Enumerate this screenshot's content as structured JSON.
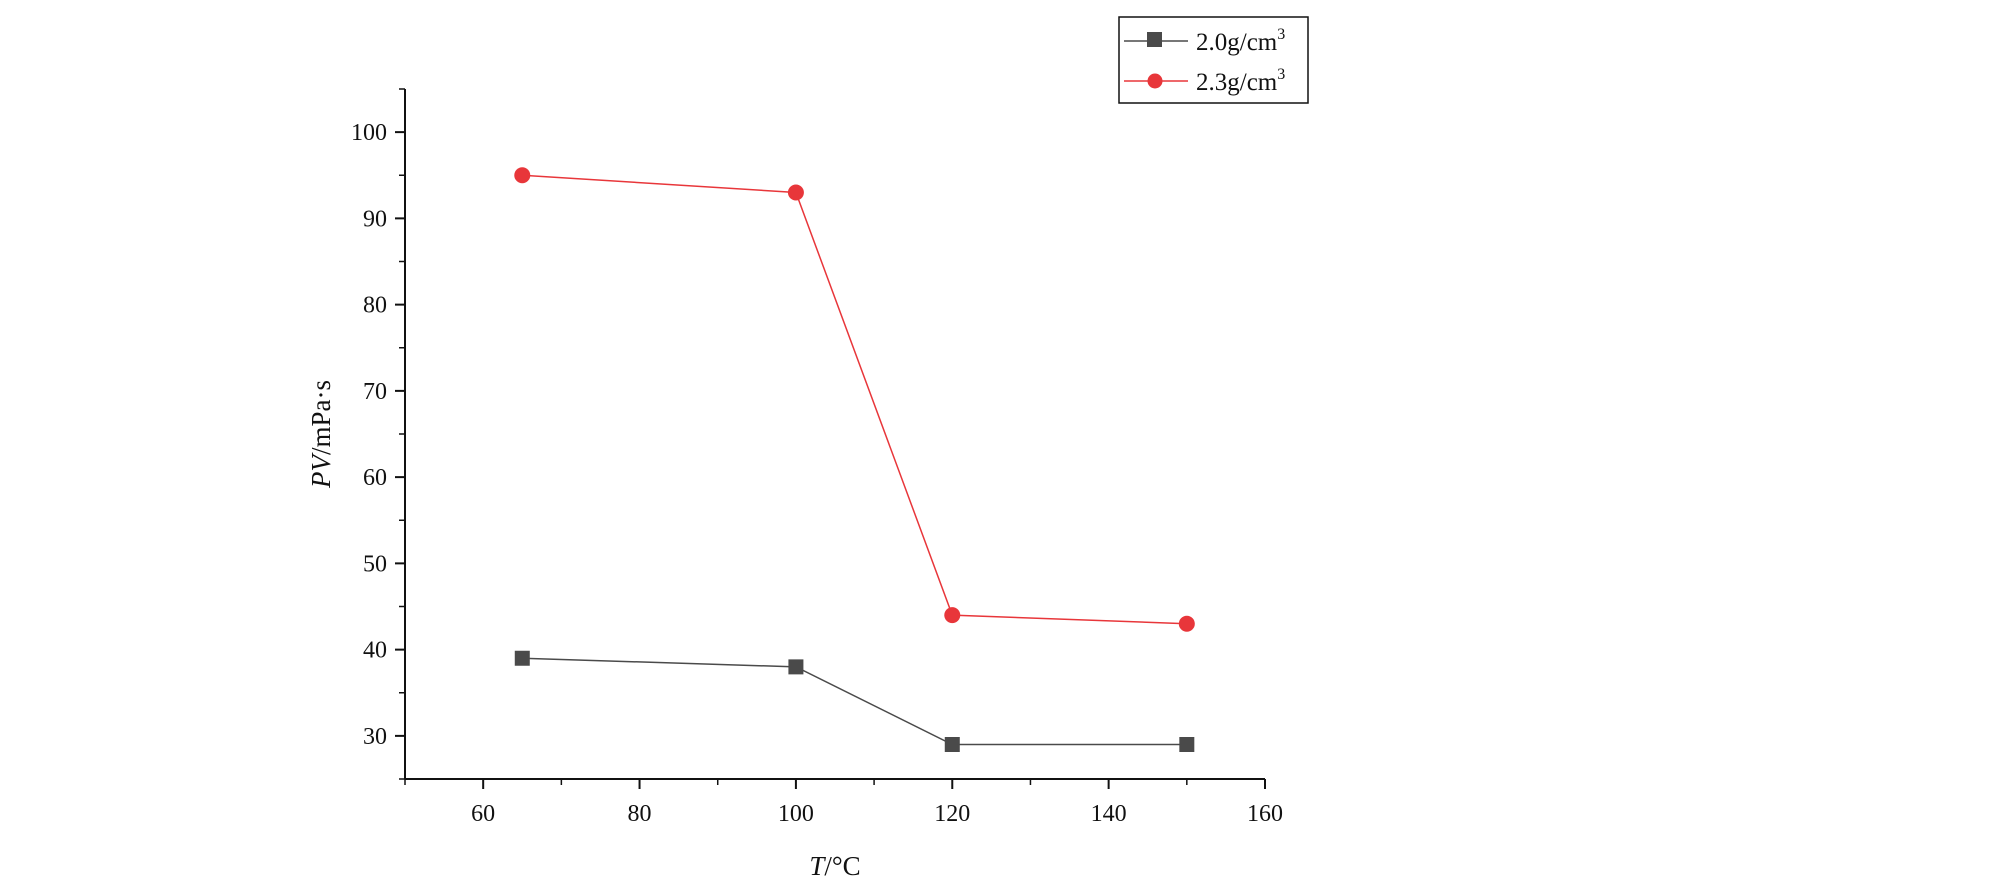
{
  "chart_data": {
    "type": "line",
    "xlabel": {
      "italic": "T",
      "rest": "/°C"
    },
    "ylabel": {
      "italic": "PV",
      "rest": "/mPa·s"
    },
    "xlim": [
      50,
      160
    ],
    "ylim": [
      25,
      105
    ],
    "xticks": [
      60,
      80,
      100,
      120,
      140,
      160
    ],
    "yticks": [
      30,
      40,
      50,
      60,
      70,
      80,
      90,
      100
    ],
    "grid": false,
    "legend_position": "top-right",
    "series": [
      {
        "name_base": "2.0g/cm",
        "name_sup": "3",
        "color": "#4a4a4a",
        "marker": "square",
        "x": [
          65,
          100,
          120,
          150
        ],
        "y": [
          39,
          38,
          29,
          29
        ]
      },
      {
        "name_base": "2.3g/cm",
        "name_sup": "3",
        "color": "#e8363a",
        "marker": "circle",
        "x": [
          65,
          100,
          120,
          150
        ],
        "y": [
          95,
          93,
          44,
          43
        ]
      }
    ]
  }
}
